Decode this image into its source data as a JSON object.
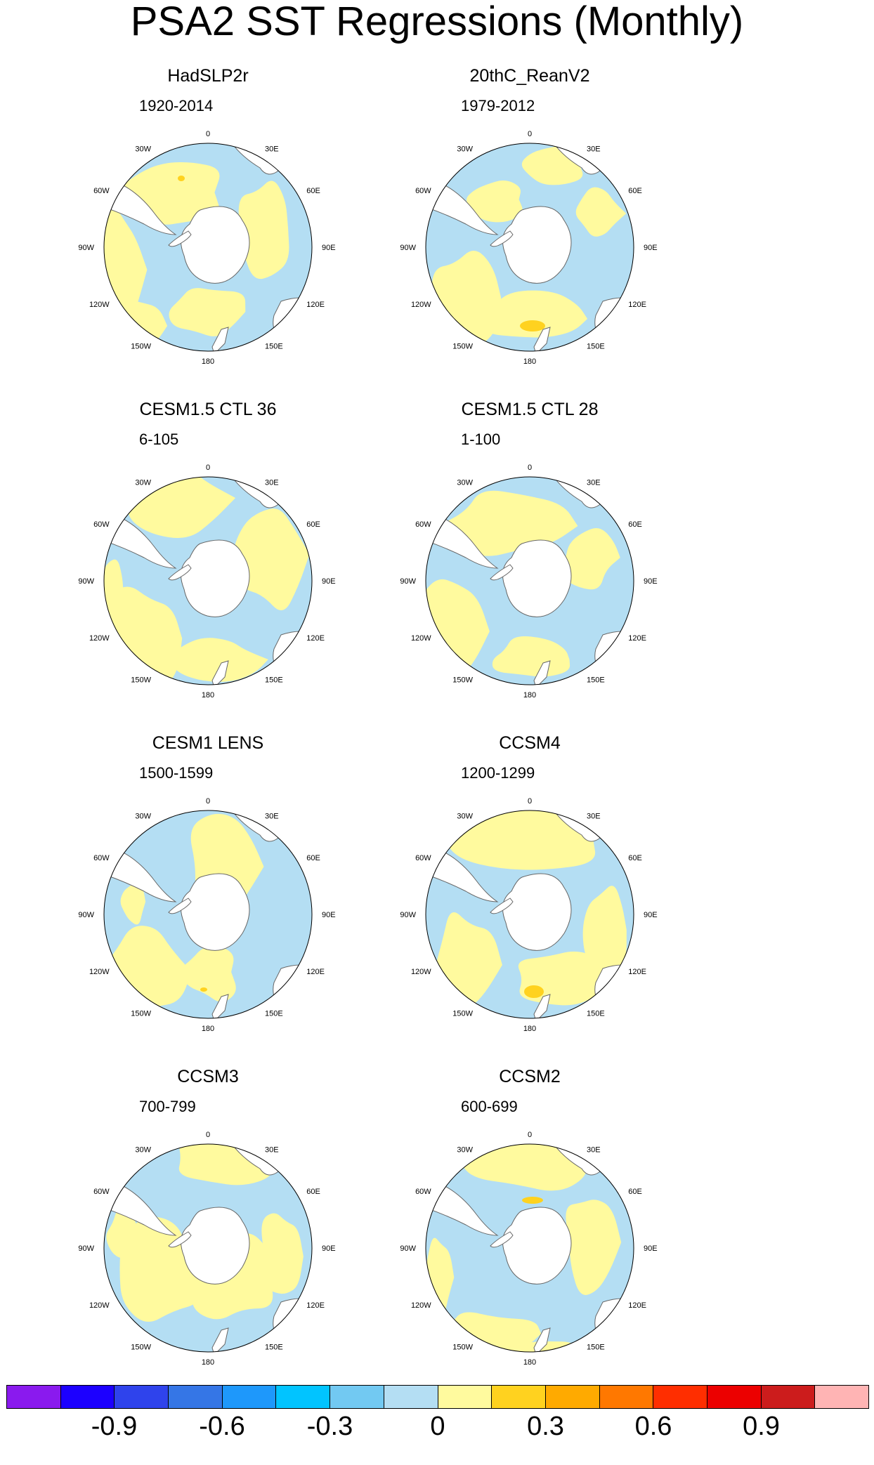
{
  "figure": {
    "title": "PSA2 SST Regressions (Monthly)",
    "panels": [
      {
        "title": "HadSLP2r",
        "period": "1920-2014",
        "pattern": 0
      },
      {
        "title": "20thC_ReanV2",
        "period": "1979-2012",
        "pattern": 1
      },
      {
        "title": "CESM1.5 CTL 36",
        "period": "6-105",
        "pattern": 2
      },
      {
        "title": "CESM1.5 CTL 28",
        "period": "1-100",
        "pattern": 3
      },
      {
        "title": "CESM1 LENS",
        "period": "1500-1599",
        "pattern": 4
      },
      {
        "title": "CCSM4",
        "period": "1200-1299",
        "pattern": 5
      },
      {
        "title": "CCSM3",
        "period": "700-799",
        "pattern": 6
      },
      {
        "title": "CCSM2",
        "period": "600-699",
        "pattern": 7
      }
    ],
    "longitude_labels": [
      "0",
      "30E",
      "60E",
      "90E",
      "120E",
      "150E",
      "180",
      "150W",
      "120W",
      "90W",
      "60W",
      "30W"
    ],
    "colorbar": {
      "colors": [
        "#8a1aee",
        "#1c00ff",
        "#2f43ec",
        "#3576e6",
        "#1e98fb",
        "#01c4ff",
        "#72c9f2",
        "#b4def3",
        "#fffa9e",
        "#ffd21f",
        "#ffaa00",
        "#ff7800",
        "#ff2e00",
        "#ec0000",
        "#cc1c1c",
        "#ffb4b4"
      ],
      "labels": [
        {
          "text": "-0.9",
          "boundary": 2
        },
        {
          "text": "-0.6",
          "boundary": 4
        },
        {
          "text": "-0.3",
          "boundary": 6
        },
        {
          "text": "0",
          "boundary": 8
        },
        {
          "text": "0.3",
          "boundary": 10
        },
        {
          "text": "0.6",
          "boundary": 12
        },
        {
          "text": "0.9",
          "boundary": 14
        }
      ]
    },
    "map_colors": {
      "positive": "#fffa9e",
      "negative": "#b4def3",
      "strong_positive": "#ffd21f",
      "strong_negative": "#72c9f2",
      "land": "#ffffff",
      "coast": "#666666"
    }
  }
}
